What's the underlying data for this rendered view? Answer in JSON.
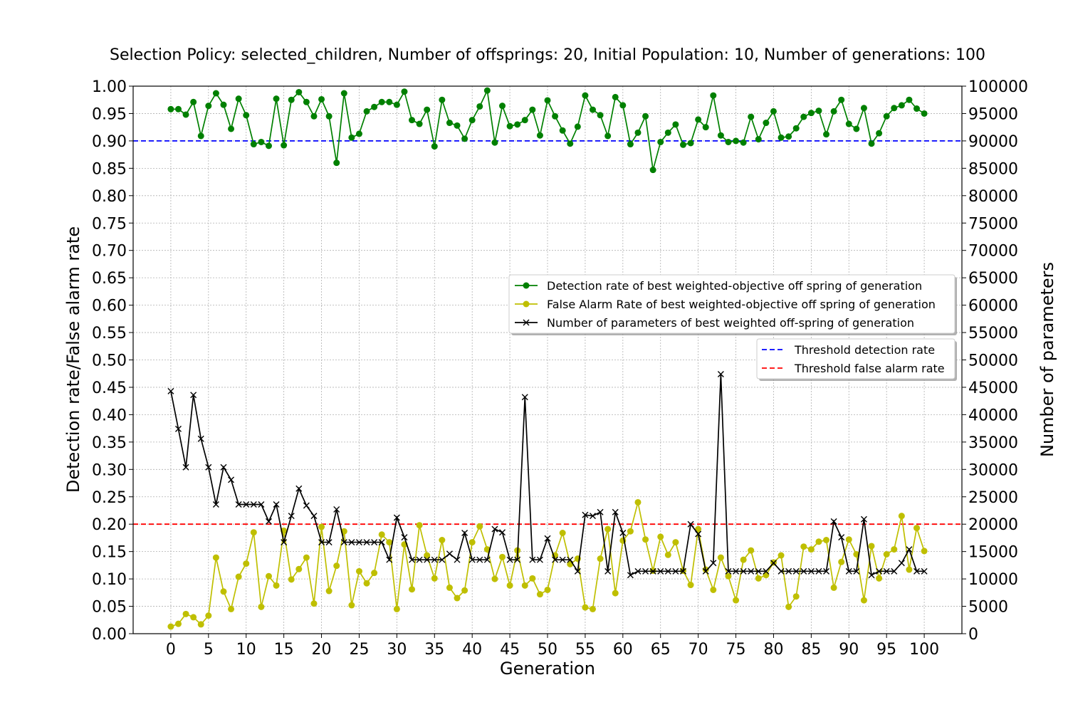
{
  "chart_data": {
    "type": "line",
    "title": "Selection Policy: selected_children, Number of offsprings: 20, Initial Population: 10, Number of generations: 100",
    "xlabel": "Generation",
    "ylabel_left": "Detection rate/False alarm rate",
    "ylabel_right": "Number of parameters",
    "xlim": [
      -5,
      105
    ],
    "ylim_left": [
      0,
      1
    ],
    "ylim_right": [
      0,
      100000
    ],
    "x_ticks": [
      "0",
      "5",
      "10",
      "15",
      "20",
      "25",
      "30",
      "35",
      "40",
      "45",
      "50",
      "55",
      "60",
      "65",
      "70",
      "75",
      "80",
      "85",
      "90",
      "95",
      "100"
    ],
    "y_ticks_left": [
      "0.00",
      "0.05",
      "0.10",
      "0.15",
      "0.20",
      "0.25",
      "0.30",
      "0.35",
      "0.40",
      "0.45",
      "0.50",
      "0.55",
      "0.60",
      "0.65",
      "0.70",
      "0.75",
      "0.80",
      "0.85",
      "0.90",
      "0.95",
      "1.00"
    ],
    "y_ticks_right": [
      "0",
      "5000",
      "10000",
      "15000",
      "20000",
      "25000",
      "30000",
      "35000",
      "40000",
      "45000",
      "50000",
      "55000",
      "60000",
      "65000",
      "70000",
      "75000",
      "80000",
      "85000",
      "90000",
      "95000",
      "100000"
    ],
    "grid": true,
    "series": [
      {
        "name": "Detection rate of best weighted-objective off spring of generation",
        "axis": "left",
        "color": "#008000",
        "marker": "circle",
        "values": [
          0.958,
          0.958,
          0.948,
          0.971,
          0.909,
          0.964,
          0.987,
          0.966,
          0.922,
          0.977,
          0.947,
          0.894,
          0.898,
          0.891,
          0.977,
          0.892,
          0.975,
          0.989,
          0.971,
          0.945,
          0.976,
          0.945,
          0.86,
          0.987,
          0.906,
          0.913,
          0.954,
          0.962,
          0.971,
          0.971,
          0.966,
          0.99,
          0.938,
          0.931,
          0.957,
          0.89,
          0.975,
          0.933,
          0.928,
          0.904,
          0.938,
          0.963,
          0.992,
          0.897,
          0.964,
          0.927,
          0.93,
          0.938,
          0.957,
          0.91,
          0.974,
          0.945,
          0.919,
          0.895,
          0.926,
          0.983,
          0.957,
          0.947,
          0.909,
          0.98,
          0.965,
          0.894,
          0.915,
          0.945,
          0.847,
          0.898,
          0.915,
          0.93,
          0.893,
          0.896,
          0.939,
          0.925,
          0.983,
          0.91,
          0.898,
          0.9,
          0.897,
          0.944,
          0.903,
          0.933,
          0.954,
          0.906,
          0.908,
          0.923,
          0.944,
          0.951,
          0.955,
          0.912,
          0.954,
          0.975,
          0.931,
          0.922,
          0.96,
          0.895,
          0.914,
          0.945,
          0.96,
          0.965,
          0.975,
          0.959,
          0.95
        ]
      },
      {
        "name": "False Alarm Rate of best weighted-objective off spring of generation",
        "axis": "left",
        "color": "#bfbf00",
        "marker": "circle",
        "values": [
          0.013,
          0.018,
          0.036,
          0.03,
          0.017,
          0.033,
          0.139,
          0.077,
          0.045,
          0.104,
          0.128,
          0.185,
          0.049,
          0.105,
          0.088,
          0.188,
          0.099,
          0.118,
          0.139,
          0.055,
          0.195,
          0.078,
          0.124,
          0.187,
          0.052,
          0.114,
          0.092,
          0.111,
          0.181,
          0.167,
          0.045,
          0.163,
          0.081,
          0.198,
          0.143,
          0.101,
          0.171,
          0.084,
          0.065,
          0.079,
          0.167,
          0.196,
          0.154,
          0.1,
          0.14,
          0.088,
          0.152,
          0.088,
          0.101,
          0.072,
          0.08,
          0.143,
          0.184,
          0.127,
          0.137,
          0.048,
          0.045,
          0.137,
          0.191,
          0.074,
          0.17,
          0.187,
          0.24,
          0.172,
          0.115,
          0.177,
          0.144,
          0.167,
          0.115,
          0.089,
          0.191,
          0.117,
          0.08,
          0.139,
          0.105,
          0.061,
          0.135,
          0.152,
          0.101,
          0.107,
          0.13,
          0.143,
          0.049,
          0.068,
          0.159,
          0.154,
          0.168,
          0.171,
          0.084,
          0.131,
          0.172,
          0.145,
          0.061,
          0.16,
          0.101,
          0.145,
          0.154,
          0.215,
          0.117,
          0.193,
          0.151
        ]
      },
      {
        "name": "Number of parameters of best weighted off-spring of generation",
        "axis": "right",
        "color": "#000000",
        "marker": "x",
        "values": [
          44300,
          37400,
          30400,
          43600,
          35600,
          30400,
          23600,
          30400,
          28100,
          23600,
          23600,
          23600,
          23600,
          20500,
          23600,
          16700,
          21500,
          26500,
          23400,
          21500,
          16700,
          16700,
          22700,
          16700,
          16700,
          16700,
          16700,
          16700,
          16700,
          13500,
          21200,
          17600,
          13500,
          13500,
          13500,
          13500,
          13500,
          14600,
          13500,
          18400,
          13500,
          13500,
          13500,
          19100,
          18500,
          13500,
          13500,
          43200,
          13500,
          13500,
          17400,
          13500,
          13500,
          13500,
          11400,
          21700,
          21500,
          22200,
          11400,
          22200,
          18400,
          10700,
          11400,
          11400,
          11400,
          11400,
          11400,
          11400,
          11400,
          20000,
          18200,
          11400,
          12900,
          47400,
          11400,
          11400,
          11400,
          11400,
          11400,
          11400,
          12900,
          11400,
          11400,
          11400,
          11400,
          11400,
          11400,
          11400,
          20500,
          17600,
          11400,
          11400,
          20900,
          10700,
          11400,
          11400,
          11400,
          12900,
          15400,
          11400,
          11400
        ]
      }
    ],
    "reference_lines": [
      {
        "name": "Threshold detection rate",
        "axis": "left",
        "value": 0.9,
        "color": "#0000ff",
        "style": "dashed"
      },
      {
        "name": "Threshold false alarm rate",
        "axis": "left",
        "value": 0.2,
        "color": "#ff0000",
        "style": "dashed"
      }
    ],
    "legend_placement": "center-right"
  }
}
